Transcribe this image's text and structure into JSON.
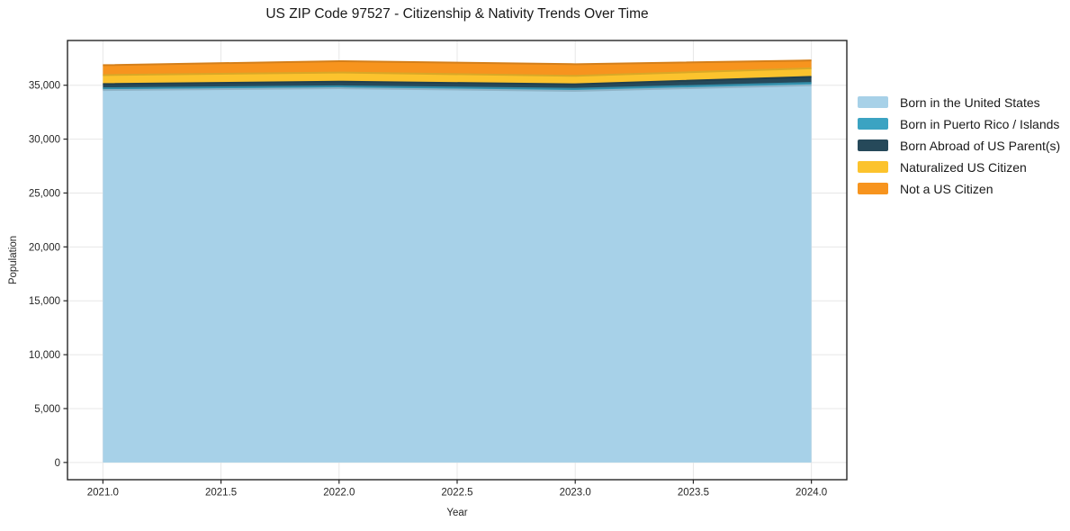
{
  "chart_data": {
    "type": "area",
    "stacked": true,
    "title": "US ZIP Code 97527 - Citizenship & Nativity Trends Over Time",
    "xlabel": "Year",
    "ylabel": "Population",
    "x": [
      2021,
      2022,
      2023,
      2024
    ],
    "series": [
      {
        "name": "Born in the United States",
        "color": "#a7d1e8",
        "values": [
          34550,
          34720,
          34470,
          35000
        ]
      },
      {
        "name": "Born in Puerto Rico / Islands",
        "color": "#3ba3c2",
        "values": [
          170,
          180,
          200,
          220
        ]
      },
      {
        "name": "Born Abroad of US Parent(s)",
        "color": "#26495a",
        "values": [
          390,
          430,
          420,
          560
        ]
      },
      {
        "name": "Naturalized US Citizen",
        "color": "#fcc32d",
        "values": [
          830,
          850,
          780,
          790
        ]
      },
      {
        "name": "Not a US Citizen",
        "color": "#f7941e",
        "values": [
          920,
          1050,
          1080,
          730
        ]
      }
    ],
    "xlim": [
      2020.85,
      2024.15
    ],
    "ylim": [
      -1600,
      39150
    ],
    "grid": true,
    "legend_position": "right-outside",
    "x_ticks": [
      {
        "v": 2021.0,
        "label": "2021.0"
      },
      {
        "v": 2021.5,
        "label": "2021.5"
      },
      {
        "v": 2022.0,
        "label": "2022.0"
      },
      {
        "v": 2022.5,
        "label": "2022.5"
      },
      {
        "v": 2023.0,
        "label": "2023.0"
      },
      {
        "v": 2023.5,
        "label": "2023.5"
      },
      {
        "v": 2024.0,
        "label": "2024.0"
      }
    ],
    "y_ticks": [
      {
        "v": 0,
        "label": "0"
      },
      {
        "v": 5000,
        "label": "5,000"
      },
      {
        "v": 10000,
        "label": "10,000"
      },
      {
        "v": 15000,
        "label": "15,000"
      },
      {
        "v": 20000,
        "label": "20,000"
      },
      {
        "v": 25000,
        "label": "25,000"
      },
      {
        "v": 30000,
        "label": "30,000"
      },
      {
        "v": 35000,
        "label": "35,000"
      }
    ]
  },
  "colors": {
    "background": "#ffffff",
    "grid": "#e7e7e7",
    "spine": "#262626",
    "tick_text": "#262626",
    "title_text": "#1a1a1a"
  }
}
